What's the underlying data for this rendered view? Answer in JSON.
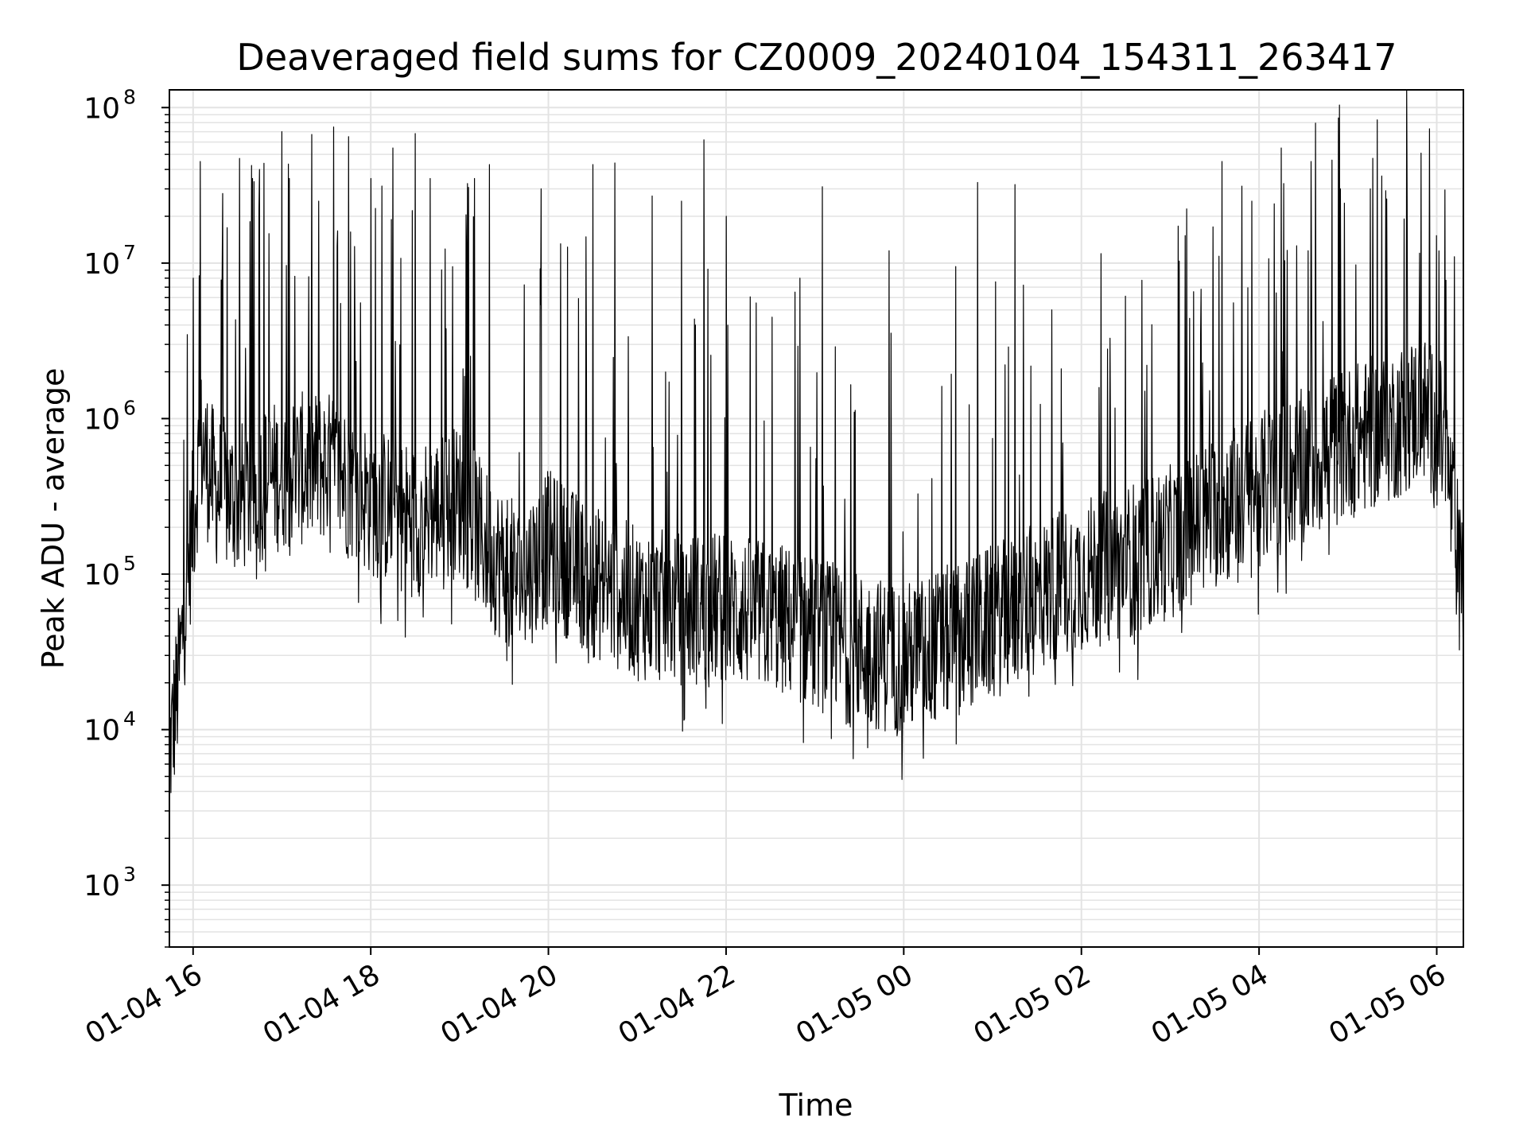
{
  "chart_data": {
    "type": "line",
    "title": "Deaveraged field sums for CZ0009_20240104_154311_263417",
    "xlabel": "Time",
    "ylabel": "Peak ADU - average",
    "yscale": "log",
    "grid": true,
    "grid_minor": true,
    "line_color": "#000000",
    "grid_color": "#e3e3e3",
    "xlim": [
      "2024-01-04 15:44",
      "2024-01-05 06:18"
    ],
    "ylim": [
      400,
      130000000
    ],
    "x_ticks": [
      "2024-01-04 16:00",
      "2024-01-04 18:00",
      "2024-01-04 20:00",
      "2024-01-04 22:00",
      "2024-01-05 00:00",
      "2024-01-05 02:00",
      "2024-01-05 04:00",
      "2024-01-05 06:00"
    ],
    "x_tick_labels": [
      "01-04 16",
      "01-04 18",
      "01-04 20",
      "01-04 22",
      "01-05 00",
      "01-05 02",
      "01-05 04",
      "01-05 06"
    ],
    "y_ticks": [
      1000,
      10000,
      100000,
      1000000,
      10000000,
      100000000
    ],
    "y_tick_labels": [
      {
        "base": "10",
        "exp": "3"
      },
      {
        "base": "10",
        "exp": "4"
      },
      {
        "base": "10",
        "exp": "5"
      },
      {
        "base": "10",
        "exp": "6"
      },
      {
        "base": "10",
        "exp": "7"
      },
      {
        "base": "10",
        "exp": "8"
      }
    ],
    "series": [
      {
        "baseline_points": [
          [
            "2024-01-04 15:44",
            7000
          ],
          [
            "2024-01-04 15:50",
            20000
          ],
          [
            "2024-01-04 15:56",
            90000
          ],
          [
            "2024-01-04 16:05",
            700000
          ],
          [
            "2024-01-04 16:15",
            350000
          ],
          [
            "2024-01-04 16:30",
            300000
          ],
          [
            "2024-01-04 17:00",
            450000
          ],
          [
            "2024-01-04 17:30",
            500000
          ],
          [
            "2024-01-04 18:00",
            300000
          ],
          [
            "2024-01-04 18:30",
            220000
          ],
          [
            "2024-01-04 19:00",
            300000
          ],
          [
            "2024-01-04 19:20",
            140000
          ],
          [
            "2024-01-04 19:40",
            90000
          ],
          [
            "2024-01-04 20:00",
            150000
          ],
          [
            "2024-01-04 20:30",
            90000
          ],
          [
            "2024-01-04 21:00",
            65000
          ],
          [
            "2024-01-04 21:30",
            60000
          ],
          [
            "2024-01-04 22:00",
            60000
          ],
          [
            "2024-01-04 22:40",
            50000
          ],
          [
            "2024-01-04 23:20",
            35000
          ],
          [
            "2024-01-05 00:00",
            28000
          ],
          [
            "2024-01-05 00:40",
            40000
          ],
          [
            "2024-01-05 01:20",
            60000
          ],
          [
            "2024-01-05 01:40",
            80000
          ],
          [
            "2024-01-05 02:00",
            100000
          ],
          [
            "2024-01-05 02:30",
            120000
          ],
          [
            "2024-01-05 03:00",
            160000
          ],
          [
            "2024-01-05 03:30",
            250000
          ],
          [
            "2024-01-05 04:00",
            350000
          ],
          [
            "2024-01-05 04:30",
            500000
          ],
          [
            "2024-01-05 05:00",
            700000
          ],
          [
            "2024-01-05 05:30",
            900000
          ],
          [
            "2024-01-05 05:50",
            1200000
          ],
          [
            "2024-01-05 06:05",
            700000
          ],
          [
            "2024-01-05 06:12",
            200000
          ],
          [
            "2024-01-05 06:18",
            60000
          ]
        ],
        "peaks": [
          [
            "2024-01-04 16:00",
            8000000
          ],
          [
            "2024-01-04 16:05",
            45000000
          ],
          [
            "2024-01-04 16:20",
            28000000
          ],
          [
            "2024-01-04 16:40",
            35000000
          ],
          [
            "2024-01-04 16:45",
            40000000
          ],
          [
            "2024-01-04 17:00",
            70000000
          ],
          [
            "2024-01-04 17:05",
            35000000
          ],
          [
            "2024-01-04 17:25",
            25000000
          ],
          [
            "2024-01-04 17:35",
            75000000
          ],
          [
            "2024-01-04 17:45",
            65000000
          ],
          [
            "2024-01-04 18:00",
            35000000
          ],
          [
            "2024-01-04 18:15",
            55000000
          ],
          [
            "2024-01-04 18:30",
            68000000
          ],
          [
            "2024-01-04 18:40",
            35000000
          ],
          [
            "2024-01-04 19:10",
            35000000
          ],
          [
            "2024-01-04 19:20",
            43000000
          ],
          [
            "2024-01-04 19:55",
            30000000
          ],
          [
            "2024-01-04 20:30",
            43000000
          ],
          [
            "2024-01-04 20:45",
            44000000
          ],
          [
            "2024-01-04 21:10",
            27000000
          ],
          [
            "2024-01-04 21:30",
            25000000
          ],
          [
            "2024-01-04 21:45",
            62000000
          ],
          [
            "2024-01-04 22:00",
            20000000
          ],
          [
            "2024-01-04 22:50",
            8000000
          ],
          [
            "2024-01-04 23:05",
            31000000
          ],
          [
            "2024-01-04 23:50",
            12000000
          ],
          [
            "2024-01-05 00:35",
            9500000
          ],
          [
            "2024-01-05 00:50",
            33000000
          ],
          [
            "2024-01-05 01:15",
            32000000
          ],
          [
            "2024-01-05 01:40",
            5000000
          ],
          [
            "2024-01-05 03:10",
            15000000
          ],
          [
            "2024-01-05 03:35",
            45000000
          ],
          [
            "2024-01-05 03:55",
            25000000
          ],
          [
            "2024-01-05 04:15",
            55000000
          ],
          [
            "2024-01-05 04:35",
            45000000
          ],
          [
            "2024-01-05 04:55",
            30000000
          ],
          [
            "2024-01-05 05:15",
            30000000
          ],
          [
            "2024-01-05 05:40",
            25000000
          ],
          [
            "2024-01-05 05:55",
            73000000
          ],
          [
            "2024-01-05 06:00",
            15000000
          ]
        ]
      }
    ]
  }
}
